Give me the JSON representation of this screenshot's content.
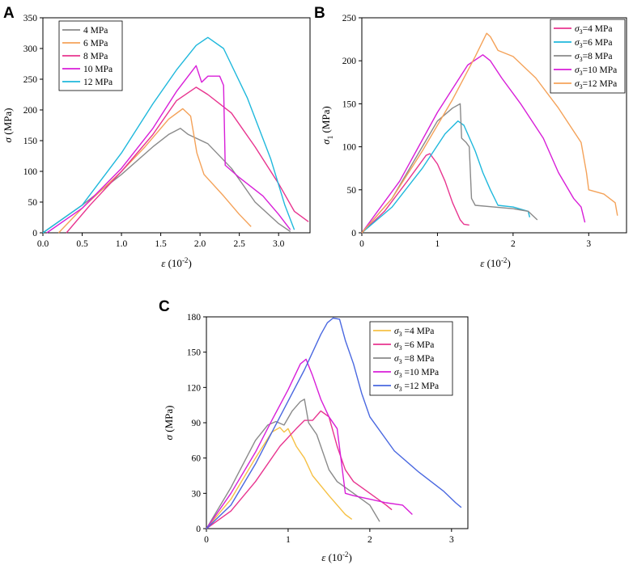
{
  "chart_data": [
    {
      "panel": "A",
      "type": "line",
      "xlabel_symbol": "ε",
      "xlabel_unit": " (10",
      "xlabel_exp": "-2",
      "xlabel_close": ")",
      "ylabel_symbol": "σ",
      "ylabel_unit": " (MPa)",
      "xlim": [
        0,
        3.4
      ],
      "ylim": [
        0,
        350
      ],
      "xticks": [
        "0.0",
        "0.5",
        "1.0",
        "1.5",
        "2.0",
        "2.5",
        "3.0"
      ],
      "xtick_values": [
        0,
        0.5,
        1,
        1.5,
        2,
        2.5,
        3
      ],
      "yticks": [
        "0",
        "50",
        "100",
        "150",
        "200",
        "250",
        "300",
        "350"
      ],
      "ytick_values": [
        0,
        50,
        100,
        150,
        200,
        250,
        300,
        350
      ],
      "legend": [
        {
          "label": "4 MPa",
          "color": "#8a8a8a"
        },
        {
          "label": "6 MPa",
          "color": "#f4a259"
        },
        {
          "label": "8 MPa",
          "color": "#e8348f"
        },
        {
          "label": "10 MPa",
          "color": "#d81ed8"
        },
        {
          "label": "12 MPa",
          "color": "#1fb8dc"
        }
      ],
      "series": [
        {
          "name": "4 MPa",
          "color": "#8a8a8a",
          "x": [
            0,
            0.5,
            1.0,
            1.4,
            1.6,
            1.75,
            1.85,
            2.1,
            2.4,
            2.7,
            3.0,
            3.15
          ],
          "y": [
            0,
            45,
            95,
            140,
            160,
            170,
            160,
            145,
            105,
            50,
            15,
            2
          ]
        },
        {
          "name": "6 MPa",
          "color": "#f4a259",
          "x": [
            0.2,
            0.5,
            1.0,
            1.3,
            1.6,
            1.78,
            1.88,
            1.92,
            1.96,
            2.05,
            2.3,
            2.5,
            2.65
          ],
          "y": [
            0,
            40,
            100,
            140,
            185,
            202,
            190,
            160,
            130,
            95,
            60,
            30,
            10
          ]
        },
        {
          "name": "8 MPa",
          "color": "#e8348f",
          "x": [
            0.3,
            0.6,
            1.0,
            1.4,
            1.7,
            1.95,
            2.1,
            2.4,
            2.7,
            3.0,
            3.2,
            3.38
          ],
          "y": [
            0,
            45,
            100,
            160,
            215,
            237,
            225,
            195,
            140,
            80,
            35,
            18
          ]
        },
        {
          "name": "10 MPa",
          "color": "#d81ed8",
          "x": [
            0.05,
            0.5,
            1.0,
            1.4,
            1.7,
            1.95,
            2.02,
            2.1,
            2.25,
            2.3,
            2.32,
            2.5,
            2.8,
            3.0,
            3.15
          ],
          "y": [
            0,
            40,
            105,
            170,
            230,
            272,
            245,
            255,
            255,
            240,
            110,
            90,
            60,
            30,
            5
          ]
        },
        {
          "name": "12 MPa",
          "color": "#1fb8dc",
          "x": [
            0,
            0.5,
            1.0,
            1.4,
            1.7,
            1.95,
            2.1,
            2.3,
            2.6,
            2.9,
            3.08,
            3.2
          ],
          "y": [
            0,
            45,
            130,
            210,
            265,
            305,
            318,
            300,
            220,
            120,
            45,
            5
          ]
        }
      ]
    },
    {
      "panel": "B",
      "type": "line",
      "xlabel_symbol": "ε",
      "xlabel_unit": " (10",
      "xlabel_exp": "-2",
      "xlabel_close": ")",
      "ylabel_symbol": "σ",
      "ylabel_sub": "1",
      "ylabel_unit": " (MPa)",
      "xlim": [
        0,
        3.5
      ],
      "ylim": [
        0,
        250
      ],
      "xticks": [
        "0",
        "1",
        "2",
        "3"
      ],
      "xtick_values": [
        0,
        1,
        2,
        3
      ],
      "yticks": [
        "0",
        "50",
        "100",
        "150",
        "200",
        "250"
      ],
      "ytick_values": [
        0,
        50,
        100,
        150,
        200,
        250
      ],
      "legend": [
        {
          "sym": "σ",
          "sub": "3",
          "rest": "=4 MPa",
          "color": "#e8348f"
        },
        {
          "sym": "σ",
          "sub": "3",
          "rest": "=6 MPa",
          "color": "#1fb8dc"
        },
        {
          "sym": "σ",
          "sub": "3",
          "rest": "=8 MPa",
          "color": "#8a8a8a"
        },
        {
          "sym": "σ",
          "sub": "3",
          "rest": "=10 MPa",
          "color": "#d81ed8"
        },
        {
          "sym": "σ",
          "sub": "3",
          "rest": "=12 MPa",
          "color": "#f4a259"
        }
      ],
      "series": [
        {
          "name": "σ3=4 MPa",
          "color": "#e8348f",
          "x": [
            0,
            0.3,
            0.6,
            0.85,
            0.9,
            1.0,
            1.1,
            1.2,
            1.3,
            1.35,
            1.42
          ],
          "y": [
            0,
            25,
            60,
            90,
            92,
            80,
            60,
            35,
            15,
            10,
            9
          ]
        },
        {
          "name": "σ3=6 MPa",
          "color": "#1fb8dc",
          "x": [
            0,
            0.4,
            0.8,
            1.1,
            1.27,
            1.35,
            1.5,
            1.6,
            1.7,
            1.8,
            2.0,
            2.2,
            2.22
          ],
          "y": [
            0,
            30,
            75,
            115,
            130,
            125,
            95,
            70,
            50,
            32,
            30,
            25,
            18
          ]
        },
        {
          "name": "σ3=8 MPa",
          "color": "#8a8a8a",
          "x": [
            0,
            0.4,
            0.8,
            1.0,
            1.2,
            1.3,
            1.32,
            1.38,
            1.42,
            1.45,
            1.5,
            2.0,
            2.2,
            2.32
          ],
          "y": [
            0,
            40,
            100,
            130,
            145,
            150,
            110,
            105,
            100,
            40,
            32,
            28,
            25,
            15
          ]
        },
        {
          "name": "σ3=10 MPa",
          "color": "#d81ed8",
          "x": [
            0,
            0.5,
            1.0,
            1.4,
            1.6,
            1.7,
            1.85,
            2.1,
            2.4,
            2.6,
            2.8,
            2.9,
            2.95
          ],
          "y": [
            0,
            60,
            140,
            195,
            207,
            200,
            180,
            150,
            110,
            70,
            40,
            30,
            12
          ]
        },
        {
          "name": "σ3=12 MPa",
          "color": "#f4a259",
          "x": [
            0,
            0.4,
            0.8,
            1.2,
            1.5,
            1.65,
            1.7,
            1.8,
            2.0,
            2.3,
            2.6,
            2.9,
            2.97,
            3.0,
            3.2,
            3.35,
            3.38
          ],
          "y": [
            0,
            40,
            95,
            155,
            205,
            232,
            228,
            212,
            205,
            180,
            145,
            105,
            70,
            50,
            45,
            35,
            20
          ]
        }
      ]
    },
    {
      "panel": "C",
      "type": "line",
      "xlabel_symbol": "ε",
      "xlabel_unit": " (10",
      "xlabel_exp": "-2",
      "xlabel_close": ")",
      "ylabel_symbol": "σ",
      "ylabel_unit": " (MPa)",
      "xlim": [
        0,
        3.2
      ],
      "ylim": [
        0,
        180
      ],
      "xticks": [
        "0",
        "1",
        "2",
        "3"
      ],
      "xtick_values": [
        0,
        1,
        2,
        3
      ],
      "yticks": [
        "0",
        "30",
        "60",
        "90",
        "120",
        "150",
        "180"
      ],
      "ytick_values": [
        0,
        30,
        60,
        90,
        120,
        150,
        180
      ],
      "legend": [
        {
          "sym": "σ",
          "sub": "3",
          "rest": " =4 MPa",
          "color": "#f6c145"
        },
        {
          "sym": "σ",
          "sub": "3",
          "rest": " =6 MPa",
          "color": "#e8348f"
        },
        {
          "sym": "σ",
          "sub": "3",
          "rest": " =8 MPa",
          "color": "#8a8a8a"
        },
        {
          "sym": "σ",
          "sub": "3",
          "rest": " =10 MPa",
          "color": "#d81ed8"
        },
        {
          "sym": "σ",
          "sub": "3",
          "rest": " =12 MPa",
          "color": "#4a68e0"
        }
      ],
      "series": [
        {
          "name": "σ3 =4 MPa",
          "color": "#f6c145",
          "x": [
            0,
            0.3,
            0.6,
            0.8,
            0.9,
            0.95,
            1.0,
            1.1,
            1.2,
            1.3,
            1.5,
            1.7,
            1.78
          ],
          "y": [
            0,
            25,
            60,
            82,
            86,
            82,
            85,
            70,
            60,
            45,
            28,
            12,
            8
          ]
        },
        {
          "name": "σ3 =6 MPa",
          "color": "#e8348f",
          "x": [
            0,
            0.3,
            0.6,
            0.9,
            1.1,
            1.2,
            1.3,
            1.4,
            1.5,
            1.6,
            1.7,
            1.8,
            2.0,
            2.2,
            2.27
          ],
          "y": [
            0,
            15,
            40,
            70,
            85,
            92,
            92,
            100,
            95,
            70,
            50,
            40,
            30,
            20,
            16
          ]
        },
        {
          "name": "σ3 =8 MPa",
          "color": "#8a8a8a",
          "x": [
            0,
            0.3,
            0.6,
            0.75,
            0.85,
            0.95,
            1.05,
            1.15,
            1.2,
            1.25,
            1.35,
            1.5,
            1.6,
            1.8,
            2.0,
            2.12
          ],
          "y": [
            0,
            35,
            75,
            88,
            91,
            88,
            100,
            108,
            110,
            90,
            80,
            50,
            40,
            30,
            20,
            6
          ]
        },
        {
          "name": "σ3 =10 MPa",
          "color": "#d81ed8",
          "x": [
            0,
            0.3,
            0.6,
            0.8,
            1.0,
            1.15,
            1.22,
            1.3,
            1.4,
            1.5,
            1.6,
            1.7,
            1.8,
            2.0,
            2.2,
            2.4,
            2.52
          ],
          "y": [
            0,
            30,
            65,
            92,
            118,
            140,
            144,
            130,
            110,
            95,
            85,
            30,
            28,
            25,
            22,
            20,
            12
          ]
        },
        {
          "name": "σ3 =12 MPa",
          "color": "#4a68e0",
          "x": [
            0,
            0.3,
            0.6,
            0.9,
            1.2,
            1.4,
            1.48,
            1.55,
            1.63,
            1.7,
            1.8,
            1.9,
            2.0,
            2.3,
            2.6,
            2.9,
            3.05,
            3.12
          ],
          "y": [
            0,
            20,
            55,
            95,
            135,
            165,
            175,
            179,
            178,
            160,
            140,
            115,
            95,
            66,
            48,
            32,
            22,
            18
          ]
        }
      ]
    }
  ]
}
